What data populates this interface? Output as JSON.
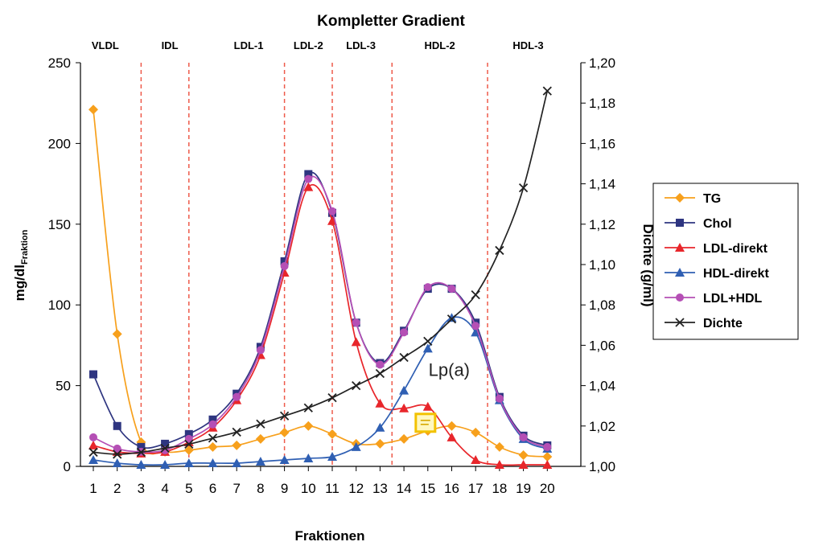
{
  "chart_data": {
    "type": "line",
    "title": "Kompletter Gradient",
    "xlabel": "Fraktionen",
    "ylabel": "mg/dl",
    "ylabel_sub": "Fraktion",
    "y2label": "Dichte (g/ml)",
    "x": [
      1,
      2,
      3,
      4,
      5,
      6,
      7,
      8,
      9,
      10,
      11,
      12,
      13,
      14,
      15,
      16,
      17,
      18,
      19,
      20
    ],
    "x_ticks": [
      "1",
      "2",
      "3",
      "4",
      "5",
      "6",
      "7",
      "8",
      "9",
      "10",
      "11",
      "12",
      "13",
      "14",
      "15",
      "16",
      "17",
      "18",
      "19",
      "20"
    ],
    "xlim": [
      0.5,
      20.5
    ],
    "ylim": [
      0,
      250
    ],
    "y_ticks": [
      "0",
      "50",
      "100",
      "150",
      "200",
      "250"
    ],
    "y2lim": [
      1.0,
      1.2
    ],
    "y2_ticks": [
      "1,00",
      "1,02",
      "1,04",
      "1,06",
      "1,08",
      "1,10",
      "1,12",
      "1,14",
      "1,16",
      "1,18",
      "1,20"
    ],
    "grid": false,
    "legend_position": "right",
    "boundaries": [
      3,
      5,
      9,
      11,
      13.5,
      17.5
    ],
    "regions": [
      {
        "label": "VLDL",
        "x": 1.5
      },
      {
        "label": "IDL",
        "x": 4.2
      },
      {
        "label": "LDL-1",
        "x": 7.5
      },
      {
        "label": "LDL-2",
        "x": 10
      },
      {
        "label": "LDL-3",
        "x": 12.2
      },
      {
        "label": "HDL-2",
        "x": 15.5
      },
      {
        "label": "HDL-3",
        "x": 19.2
      }
    ],
    "annotation": {
      "text": "Lp(a)",
      "x": 15.5,
      "y": 60
    },
    "note_icon": {
      "x": 14.9,
      "y": 27
    },
    "series": [
      {
        "name": "TG",
        "color": "#f7a01c",
        "marker": "diamond",
        "axis": "left",
        "values": [
          221,
          82,
          15,
          9,
          10,
          12,
          13,
          17,
          21,
          25,
          20,
          14,
          14,
          17,
          22,
          25,
          21,
          12,
          7,
          6
        ]
      },
      {
        "name": "Chol",
        "color": "#2e3580",
        "marker": "square",
        "axis": "left",
        "values": [
          57,
          25,
          12,
          14,
          20,
          29,
          45,
          74,
          127,
          181,
          157,
          89,
          64,
          84,
          110,
          110,
          89,
          43,
          19,
          13
        ]
      },
      {
        "name": "LDL-direkt",
        "color": "#e8262b",
        "marker": "triangle",
        "axis": "left",
        "values": [
          13,
          9,
          8,
          9,
          15,
          24,
          41,
          69,
          120,
          173,
          152,
          77,
          39,
          36,
          37,
          18,
          4,
          1,
          1,
          1
        ]
      },
      {
        "name": "HDL-direkt",
        "color": "#2f5fb3",
        "marker": "triangle",
        "axis": "left",
        "values": [
          4,
          2,
          1,
          1,
          2,
          2,
          2,
          3,
          4,
          5,
          6,
          12,
          24,
          47,
          73,
          92,
          83,
          41,
          17,
          11
        ]
      },
      {
        "name": "LDL+HDL",
        "color": "#b54fb5",
        "marker": "circle",
        "axis": "left",
        "values": [
          18,
          11,
          9,
          10,
          17,
          26,
          43,
          72,
          124,
          178,
          158,
          89,
          63,
          83,
          111,
          110,
          87,
          42,
          18,
          12
        ]
      },
      {
        "name": "Dichte",
        "color": "#222222",
        "marker": "x",
        "axis": "right",
        "values": [
          1.007,
          1.006,
          1.007,
          1.009,
          1.011,
          1.014,
          1.017,
          1.021,
          1.025,
          1.029,
          1.034,
          1.04,
          1.046,
          1.054,
          1.062,
          1.073,
          1.085,
          1.107,
          1.138,
          1.186
        ]
      }
    ]
  }
}
